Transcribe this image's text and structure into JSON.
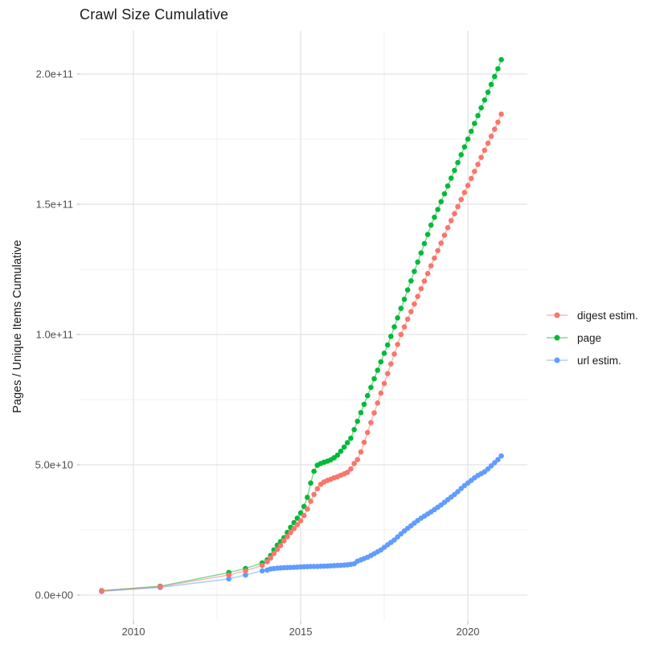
{
  "chart_data": {
    "type": "scatter",
    "title": "Crawl Size Cumulative",
    "ylabel": "Pages / Unique Items Cumulative",
    "xlabel": "",
    "value_unit": "billions of pages (1e9); y tick labels shown in scientific notation",
    "legend_position": "right",
    "grid": true,
    "x_axis": {
      "range": [
        2008.4,
        2021.8
      ],
      "ticks": [
        {
          "label": "2010",
          "year": 2010
        },
        {
          "label": "2015",
          "year": 2015
        },
        {
          "label": "2020",
          "year": 2020
        }
      ],
      "minor_years": [
        2012.5,
        2017.5
      ]
    },
    "y_axis": {
      "range_e9": [
        -10,
        215
      ],
      "ticks": [
        {
          "label": "0.0e+00",
          "value": 0
        },
        {
          "label": "5.0e+10",
          "value": 50
        },
        {
          "label": "1.0e+11",
          "value": 100
        },
        {
          "label": "1.5e+11",
          "value": 150
        },
        {
          "label": "2.0e+11",
          "value": 200
        }
      ],
      "minor_values": [
        25,
        75,
        125,
        175
      ]
    },
    "x": [
      2009.05,
      2010.8,
      2012.85,
      2013.35,
      2013.85,
      2014.0,
      2014.1,
      2014.2,
      2014.3,
      2014.4,
      2014.5,
      2014.6,
      2014.7,
      2014.8,
      2014.9,
      2015.0,
      2015.1,
      2015.2,
      2015.3,
      2015.4,
      2015.5,
      2015.6,
      2015.7,
      2015.8,
      2015.9,
      2016.0,
      2016.1,
      2016.2,
      2016.3,
      2016.4,
      2016.5,
      2016.6,
      2016.7,
      2016.8,
      2016.9,
      2017.0,
      2017.1,
      2017.2,
      2017.3,
      2017.4,
      2017.5,
      2017.6,
      2017.7,
      2017.8,
      2017.9,
      2018.0,
      2018.1,
      2018.2,
      2018.3,
      2018.4,
      2018.5,
      2018.6,
      2018.7,
      2018.8,
      2018.9,
      2019.0,
      2019.1,
      2019.2,
      2019.3,
      2019.4,
      2019.5,
      2019.6,
      2019.7,
      2019.8,
      2019.9,
      2020.0,
      2020.1,
      2020.2,
      2020.3,
      2020.4,
      2020.5,
      2020.6,
      2020.7,
      2020.8,
      2020.9,
      2021.0
    ],
    "series": [
      {
        "name": "digest estim.",
        "color": "#F8766D",
        "values": [
          1.6,
          3.2,
          7.7,
          9.3,
          11.4,
          12.8,
          14.2,
          16,
          17.5,
          19,
          20.8,
          22.4,
          24,
          25.5,
          27,
          28.5,
          30.5,
          33,
          36,
          38.6,
          40.8,
          42.5,
          43.4,
          44,
          44.4,
          45,
          45.4,
          46,
          46.5,
          47.1,
          48.4,
          50.5,
          52,
          54.9,
          58.6,
          62.4,
          66.2,
          69.9,
          73.7,
          77.5,
          81.2,
          85,
          88.7,
          92.5,
          96.2,
          100,
          102.9,
          105.9,
          108.8,
          111.7,
          114.6,
          117.6,
          120.5,
          123.4,
          126.4,
          129.3,
          132.2,
          135.1,
          138.1,
          141,
          143.7,
          146.4,
          149.1,
          151.8,
          154.5,
          157.2,
          159.9,
          162.6,
          165.3,
          168,
          170.7,
          173.4,
          176.1,
          178.8,
          181.5,
          184.6
        ]
      },
      {
        "name": "page",
        "color": "#00BA38",
        "values": [
          1.7,
          3.4,
          8.6,
          10.2,
          12.3,
          13.5,
          15.2,
          17.3,
          19.1,
          20.5,
          22,
          24,
          26,
          27.8,
          29.5,
          31.5,
          34,
          37.5,
          43,
          47.5,
          49.8,
          50.5,
          51,
          51.4,
          51.9,
          52.7,
          53.7,
          55.2,
          56.8,
          58.5,
          60.2,
          63.5,
          66.7,
          70,
          73.2,
          76.5,
          79.7,
          83,
          86.3,
          89.5,
          92.8,
          96,
          99.3,
          102.9,
          106.4,
          110,
          113.5,
          117.1,
          120.6,
          124.2,
          127.8,
          131.3,
          134.9,
          138.4,
          142,
          145,
          148,
          151,
          154,
          157,
          160,
          163,
          166,
          169,
          172,
          175,
          178,
          181,
          184,
          187,
          190,
          193,
          196,
          199,
          202,
          205.5
        ]
      },
      {
        "name": "url estim.",
        "color": "#619CFF",
        "values": [
          1.4,
          2.9,
          6.2,
          7.7,
          9.3,
          9.6,
          10,
          10.2,
          10.3,
          10.4,
          10.5,
          10.55,
          10.6,
          10.65,
          10.7,
          10.8,
          10.85,
          10.9,
          10.95,
          11,
          11,
          11.05,
          11.1,
          11.15,
          11.2,
          11.3,
          11.35,
          11.4,
          11.5,
          11.6,
          11.8,
          12,
          13,
          13.5,
          14,
          14.5,
          15.2,
          15.9,
          16.6,
          17.3,
          18.3,
          19.3,
          20.2,
          21.1,
          22.3,
          23.5,
          24.6,
          25.6,
          26.6,
          27.6,
          28.6,
          29.5,
          30.3,
          31.1,
          31.9,
          32.8,
          33.7,
          34.6,
          35.6,
          36.6,
          37.6,
          38.6,
          39.7,
          40.9,
          42,
          43,
          44,
          45,
          45.9,
          46.6,
          47.3,
          48.4,
          49.6,
          50.8,
          52,
          53.4
        ]
      }
    ]
  }
}
